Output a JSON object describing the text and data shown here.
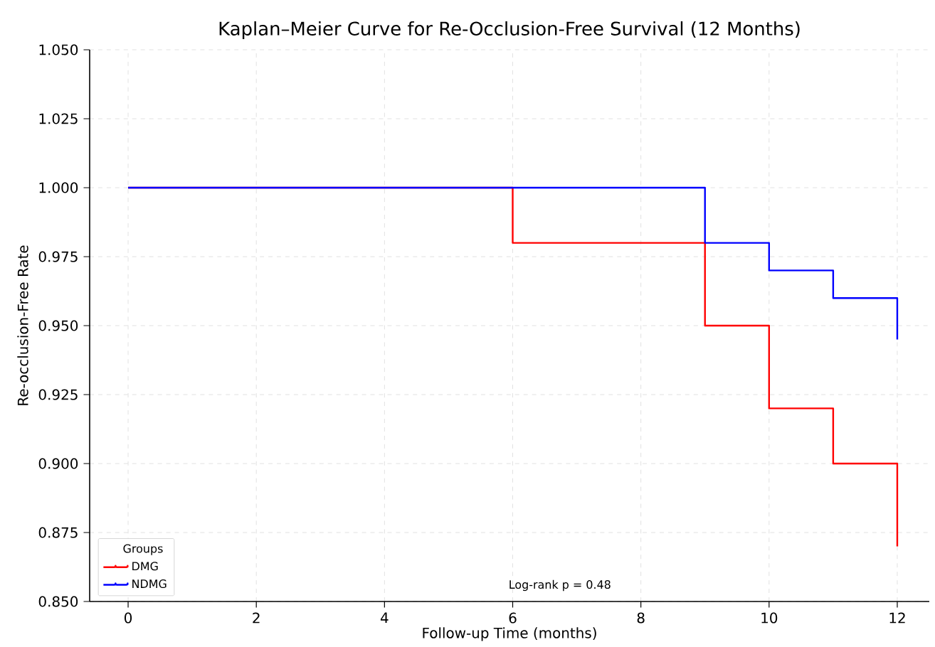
{
  "chart_data": {
    "type": "step",
    "title": "Kaplan–Meier Curve for Re-Occlusion-Free Survival (12 Months)",
    "xlabel": "Follow-up Time (months)",
    "ylabel": "Re-occlusion-Free Rate",
    "legend_title": "Groups",
    "series": [
      {
        "name": "DMG",
        "color": "#ff0000",
        "x": [
          0,
          6,
          9,
          10,
          11,
          12
        ],
        "values": [
          1.0,
          0.98,
          0.95,
          0.92,
          0.9,
          0.87
        ]
      },
      {
        "name": "NDMG",
        "color": "#0000ff",
        "x": [
          0,
          9,
          10,
          11,
          12
        ],
        "values": [
          1.0,
          0.98,
          0.97,
          0.96,
          0.945
        ]
      }
    ],
    "xlim": [
      -0.6,
      12.5
    ],
    "ylim": [
      0.85,
      1.05
    ],
    "xticks": [
      0,
      2,
      4,
      6,
      8,
      10,
      12
    ],
    "yticks": [
      {
        "value": 0.85,
        "label": "0.850"
      },
      {
        "value": 0.875,
        "label": "0.875"
      },
      {
        "value": 0.9,
        "label": "0.900"
      },
      {
        "value": 0.925,
        "label": "0.925"
      },
      {
        "value": 0.95,
        "label": "0.950"
      },
      {
        "value": 0.975,
        "label": "0.975"
      },
      {
        "value": 1.0,
        "label": "1.000"
      },
      {
        "value": 1.025,
        "label": "1.025"
      },
      {
        "value": 1.05,
        "label": "1.050"
      }
    ],
    "annotations": [
      "Log-rank p = 0.48"
    ],
    "grid": true,
    "legend": "bottom left",
    "line_style": "solid",
    "marker": "none"
  }
}
